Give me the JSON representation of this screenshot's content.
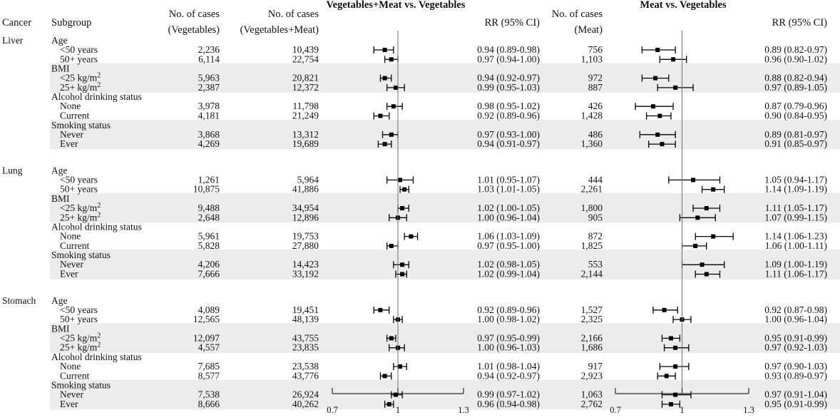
{
  "headers": {
    "cancer": "Cancer",
    "subgroup": "Subgroup",
    "cases_veg_line1": "No. of cases",
    "cases_veg_line2": "(Vegetables)",
    "cases_vm_line1": "No. of cases",
    "cases_vm_line2": "(Vegetables+Meat)",
    "panel1_title": "Vegetables+Meat vs. Vegetables",
    "rr1": "RR (95% CI)",
    "cases_meat_line1": "No. of cases",
    "cases_meat_line2": "(Meat)",
    "panel2_title": "Meat vs. Vegetables",
    "rr2": "RR (95% CI)"
  },
  "chart_data": {
    "type": "forest",
    "axes": [
      {
        "panel": "Vegetables+Meat vs. Vegetables",
        "xlim": [
          0.7,
          1.3
        ],
        "ticks": [
          "0.7",
          "1",
          "1.3"
        ],
        "reference": 1
      },
      {
        "panel": "Meat vs. Vegetables",
        "xlim": [
          0.7,
          1.3
        ],
        "ticks": [
          "0.7",
          "1",
          "1.3"
        ],
        "reference": 1
      }
    ],
    "cancers": [
      {
        "name": "Liver",
        "groups": [
          {
            "name": "Age",
            "rows": [
              {
                "label": "<50 years",
                "veg": "2,236",
                "vm": "10,439",
                "rr1": [
                  0.94,
                  0.89,
                  0.98
                ],
                "rr1_text": "0.94 (0.89-0.98)",
                "meat": "756",
                "rr2": [
                  0.89,
                  0.82,
                  0.97
                ],
                "rr2_text": "0.89 (0.82-0.97)"
              },
              {
                "label": "50+ years",
                "veg": "6,114",
                "vm": "22,754",
                "rr1": [
                  0.97,
                  0.94,
                  1.0
                ],
                "rr1_text": "0.97 (0.94-1.00)",
                "meat": "1,103",
                "rr2": [
                  0.96,
                  0.9,
                  1.02
                ],
                "rr2_text": "0.96 (0.90-1.02)"
              }
            ]
          },
          {
            "name": "BMI",
            "rows": [
              {
                "label": "<25 kg/m",
                "sup": "2",
                "veg": "5,963",
                "vm": "20,821",
                "rr1": [
                  0.94,
                  0.92,
                  0.97
                ],
                "rr1_text": "0.94 (0.92-0.97)",
                "meat": "972",
                "rr2": [
                  0.88,
                  0.82,
                  0.94
                ],
                "rr2_text": "0.88 (0.82-0.94)"
              },
              {
                "label": "25+ kg/m",
                "sup": "2",
                "veg": "2,387",
                "vm": "12,372",
                "rr1": [
                  0.99,
                  0.95,
                  1.03
                ],
                "rr1_text": "0.99 (0.95-1.03)",
                "meat": "887",
                "rr2": [
                  0.97,
                  0.89,
                  1.05
                ],
                "rr2_text": "0.97 (0.89-1.05)"
              }
            ]
          },
          {
            "name": "Alcohol drinking status",
            "rows": [
              {
                "label": "None",
                "veg": "3,978",
                "vm": "11,798",
                "rr1": [
                  0.98,
                  0.95,
                  1.02
                ],
                "rr1_text": "0.98 (0.95-1.02)",
                "meat": "426",
                "rr2": [
                  0.87,
                  0.79,
                  0.96
                ],
                "rr2_text": "0.87 (0.79-0.96)"
              },
              {
                "label": "Current",
                "veg": "4,181",
                "vm": "21,249",
                "rr1": [
                  0.92,
                  0.89,
                  0.96
                ],
                "rr1_text": "0.92 (0.89-0.96)",
                "meat": "1,428",
                "rr2": [
                  0.9,
                  0.84,
                  0.95
                ],
                "rr2_text": "0.90 (0.84-0.95)"
              }
            ]
          },
          {
            "name": "Smoking status",
            "rows": [
              {
                "label": "Never",
                "veg": "3,868",
                "vm": "13,312",
                "rr1": [
                  0.97,
                  0.93,
                  1.0
                ],
                "rr1_text": "0.97 (0.93-1.00)",
                "meat": "486",
                "rr2": [
                  0.89,
                  0.81,
                  0.97
                ],
                "rr2_text": "0.89 (0.81-0.97)"
              },
              {
                "label": "Ever",
                "veg": "4,269",
                "vm": "19,689",
                "rr1": [
                  0.94,
                  0.91,
                  0.97
                ],
                "rr1_text": "0.94 (0.91-0.97)",
                "meat": "1,360",
                "rr2": [
                  0.91,
                  0.85,
                  0.97
                ],
                "rr2_text": "0.91 (0.85-0.97)"
              }
            ]
          }
        ]
      },
      {
        "name": "Lung",
        "groups": [
          {
            "name": "Age",
            "rows": [
              {
                "label": "<50 years",
                "veg": "1,261",
                "vm": "5,964",
                "rr1": [
                  1.01,
                  0.95,
                  1.07
                ],
                "rr1_text": "1.01 (0.95-1.07)",
                "meat": "444",
                "rr2": [
                  1.05,
                  0.94,
                  1.17
                ],
                "rr2_text": "1.05 (0.94-1.17)"
              },
              {
                "label": "50+ years",
                "veg": "10,875",
                "vm": "41,886",
                "rr1": [
                  1.03,
                  1.01,
                  1.05
                ],
                "rr1_text": "1.03 (1.01-1.05)",
                "meat": "2,261",
                "rr2": [
                  1.14,
                  1.09,
                  1.19
                ],
                "rr2_text": "1.14 (1.09-1.19)"
              }
            ]
          },
          {
            "name": "BMI",
            "rows": [
              {
                "label": "<25 kg/m",
                "sup": "2",
                "veg": "9,488",
                "vm": "34,954",
                "rr1": [
                  1.02,
                  1.0,
                  1.05
                ],
                "rr1_text": "1.02 (1.00-1.05)",
                "meat": "1,800",
                "rr2": [
                  1.11,
                  1.05,
                  1.17
                ],
                "rr2_text": "1.11 (1.05-1.17)"
              },
              {
                "label": "25+ kg/m",
                "sup": "2",
                "veg": "2,648",
                "vm": "12,896",
                "rr1": [
                  1.0,
                  0.96,
                  1.04
                ],
                "rr1_text": "1.00 (0.96-1.04)",
                "meat": "905",
                "rr2": [
                  1.07,
                  0.99,
                  1.15
                ],
                "rr2_text": "1.07 (0.99-1.15)"
              }
            ]
          },
          {
            "name": "Alcohol drinking status",
            "rows": [
              {
                "label": "None",
                "veg": "5,961",
                "vm": "19,753",
                "rr1": [
                  1.06,
                  1.03,
                  1.09
                ],
                "rr1_text": "1.06 (1.03-1.09)",
                "meat": "872",
                "rr2": [
                  1.14,
                  1.06,
                  1.23
                ],
                "rr2_text": "1.14 (1.06-1.23)"
              },
              {
                "label": "Current",
                "veg": "5,828",
                "vm": "27,880",
                "rr1": [
                  0.97,
                  0.95,
                  1.0
                ],
                "rr1_text": "0.97 (0.95-1.00)",
                "meat": "1,825",
                "rr2": [
                  1.06,
                  1.0,
                  1.11
                ],
                "rr2_text": "1.06 (1.00-1.11)"
              }
            ]
          },
          {
            "name": "Smoking status",
            "rows": [
              {
                "label": "Never",
                "veg": "4,206",
                "vm": "14,423",
                "rr1": [
                  1.02,
                  0.98,
                  1.05
                ],
                "rr1_text": "1.02 (0.98-1.05)",
                "meat": "553",
                "rr2": [
                  1.09,
                  1.0,
                  1.19
                ],
                "rr2_text": "1.09 (1.00-1.19)"
              },
              {
                "label": "Ever",
                "veg": "7,666",
                "vm": "33,192",
                "rr1": [
                  1.02,
                  0.99,
                  1.04
                ],
                "rr1_text": "1.02 (0.99-1.04)",
                "meat": "2,144",
                "rr2": [
                  1.11,
                  1.06,
                  1.17
                ],
                "rr2_text": "1.11 (1.06-1.17)"
              }
            ]
          }
        ]
      },
      {
        "name": "Stomach",
        "groups": [
          {
            "name": "Age",
            "rows": [
              {
                "label": "<50 years",
                "veg": "4,089",
                "vm": "19,451",
                "rr1": [
                  0.92,
                  0.89,
                  0.96
                ],
                "rr1_text": "0.92 (0.89-0.96)",
                "meat": "1,527",
                "rr2": [
                  0.92,
                  0.87,
                  0.98
                ],
                "rr2_text": "0.92 (0.87-0.98)"
              },
              {
                "label": "50+ years",
                "veg": "12,565",
                "vm": "48,139",
                "rr1": [
                  1.0,
                  0.98,
                  1.02
                ],
                "rr1_text": "1.00 (0.98-1.02)",
                "meat": "2,325",
                "rr2": [
                  1.0,
                  0.96,
                  1.04
                ],
                "rr2_text": "1.00 (0.96-1.04)"
              }
            ]
          },
          {
            "name": "BMI",
            "rows": [
              {
                "label": "<25 kg/m",
                "sup": "2",
                "veg": "12,097",
                "vm": "43,755",
                "rr1": [
                  0.97,
                  0.95,
                  0.99
                ],
                "rr1_text": "0.97 (0.95-0.99)",
                "meat": "2,166",
                "rr2": [
                  0.95,
                  0.91,
                  0.99
                ],
                "rr2_text": "0.95 (0.91-0.99)"
              },
              {
                "label": "25+ kg/m",
                "sup": "2",
                "veg": "4,557",
                "vm": "23,835",
                "rr1": [
                  1.0,
                  0.96,
                  1.03
                ],
                "rr1_text": "1.00 (0.96-1.03)",
                "meat": "1,686",
                "rr2": [
                  0.97,
                  0.92,
                  1.03
                ],
                "rr2_text": "0.97 (0.92-1.03)"
              }
            ]
          },
          {
            "name": "Alcohol drinking status",
            "rows": [
              {
                "label": "None",
                "veg": "7,685",
                "vm": "23,538",
                "rr1": [
                  1.01,
                  0.98,
                  1.04
                ],
                "rr1_text": "1.01 (0.98-1.04)",
                "meat": "917",
                "rr2": [
                  0.97,
                  0.9,
                  1.03
                ],
                "rr2_text": "0.97 (0.90-1.03)"
              },
              {
                "label": "Current",
                "veg": "8,577",
                "vm": "43,776",
                "rr1": [
                  0.94,
                  0.92,
                  0.97
                ],
                "rr1_text": "0.94 (0.92-0.97)",
                "meat": "2,923",
                "rr2": [
                  0.93,
                  0.89,
                  0.97
                ],
                "rr2_text": "0.93 (0.89-0.97)"
              }
            ]
          },
          {
            "name": "Smoking status",
            "rows": [
              {
                "label": "Never",
                "veg": "7,538",
                "vm": "26,924",
                "rr1": [
                  0.99,
                  0.97,
                  1.02
                ],
                "rr1_text": "0.99 (0.97-1.02)",
                "meat": "1,063",
                "rr2": [
                  0.97,
                  0.91,
                  1.04
                ],
                "rr2_text": "0.97 (0.91-1.04)"
              },
              {
                "label": "Ever",
                "veg": "8,666",
                "vm": "40,262",
                "rr1": [
                  0.96,
                  0.94,
                  0.98
                ],
                "rr1_text": "0.96 (0.94-0.98)",
                "meat": "2,762",
                "rr2": [
                  0.95,
                  0.91,
                  0.99
                ],
                "rr2_text": "0.95 (0.91-0.99)"
              }
            ]
          }
        ]
      }
    ]
  }
}
